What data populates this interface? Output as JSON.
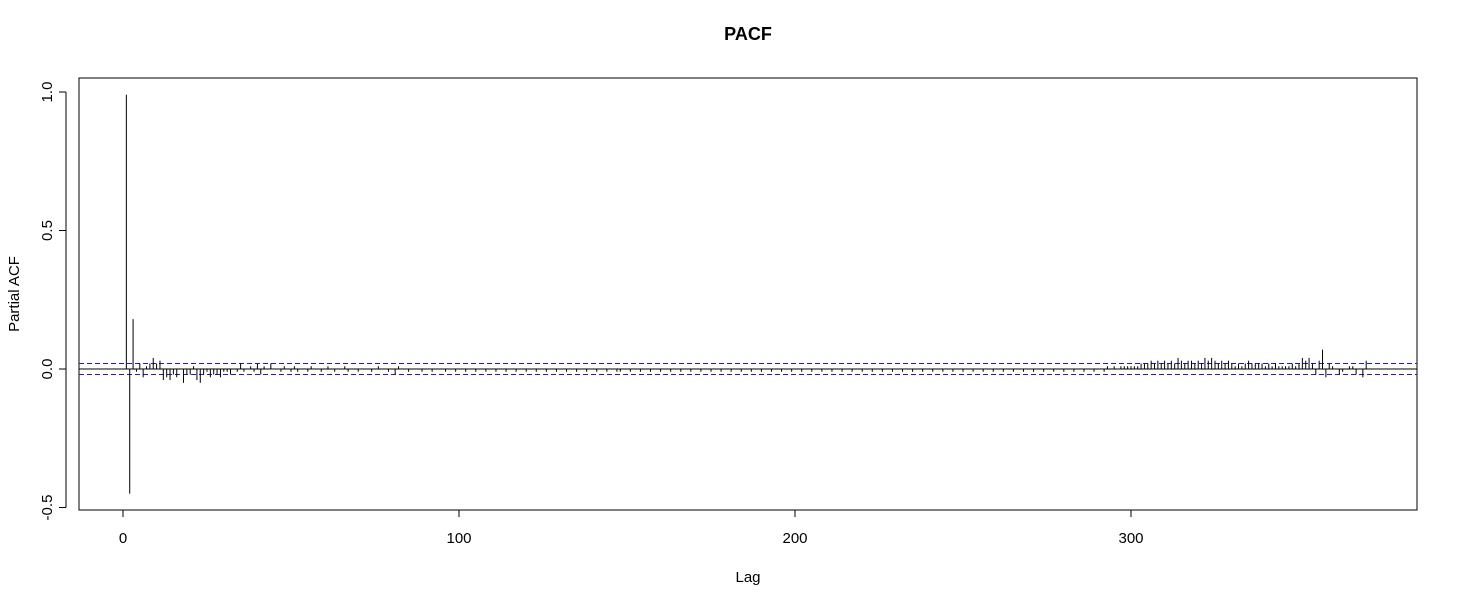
{
  "chart_data": {
    "type": "bar",
    "title": "PACF",
    "xlabel": "Lag",
    "ylabel": "Partial ACF",
    "xlim": [
      -14,
      385
    ],
    "ylim": [
      -0.5,
      1.0
    ],
    "x_ticks": [
      0,
      100,
      200,
      300
    ],
    "x_tick_labels": [
      "0",
      "100",
      "200",
      "300"
    ],
    "y_ticks": [
      -0.5,
      0.0,
      0.5,
      1.0
    ],
    "y_tick_labels": [
      "-0.5",
      "0.0",
      "0.5",
      "1.0"
    ],
    "grid": false,
    "confidence_limit": 0.02,
    "colors": {
      "bars": "#000000",
      "confidence_lines": "#1f1fbf",
      "axes": "#000000"
    },
    "series": [
      {
        "lags_start": 1,
        "values": [
          0.99,
          -0.45,
          0.18,
          -0.01,
          0.02,
          -0.03,
          0.01,
          0.02,
          0.04,
          0.02,
          0.03,
          -0.04,
          -0.03,
          -0.04,
          -0.02,
          -0.03,
          0.0,
          -0.05,
          -0.02,
          -0.02,
          0.01,
          -0.04,
          -0.05,
          -0.02,
          -0.01,
          -0.03,
          -0.02,
          -0.02,
          -0.03,
          -0.01,
          -0.01,
          -0.02,
          0.0,
          -0.01,
          0.02,
          -0.01,
          0.0,
          0.01,
          -0.01,
          0.02,
          -0.02,
          0.01,
          0.0,
          0.02,
          0.0,
          0.0,
          -0.01,
          0.01,
          0.0,
          -0.01,
          0.01,
          -0.01,
          0.0,
          0.0,
          -0.01,
          0.01,
          0.0,
          0.0,
          -0.01,
          0.0,
          0.01,
          0.0,
          -0.01,
          0.0,
          0.0,
          0.01,
          -0.01,
          0.0,
          0.0,
          -0.01,
          0.0,
          0.0,
          0.0,
          -0.01,
          0.0,
          0.01,
          0.0,
          0.0,
          -0.01,
          0.0,
          -0.02,
          0.01,
          0.0,
          0.0,
          -0.01,
          0.0,
          0.0,
          0.0,
          -0.01,
          0.0,
          0.0,
          -0.01,
          0.0,
          0.0,
          0.0,
          -0.01,
          0.0,
          0.0,
          -0.01,
          0.0,
          0.0,
          -0.01,
          0.0,
          0.0,
          -0.01,
          0.0,
          0.0,
          -0.01,
          0.0,
          0.0,
          -0.01,
          0.0,
          0.0,
          -0.01,
          0.0,
          0.0,
          -0.01,
          0.0,
          0.0,
          -0.01,
          0.0,
          0.0,
          -0.01,
          0.0,
          0.0,
          -0.01,
          0.0,
          0.0,
          -0.01,
          0.0,
          0.0,
          -0.01,
          0.0,
          0.0,
          -0.01,
          0.0,
          0.0,
          -0.01,
          0.0,
          0.0,
          -0.01,
          0.0,
          0.0,
          -0.01,
          0.0,
          0.0,
          -0.01,
          -0.01,
          0.0,
          0.0,
          -0.01,
          0.0,
          0.0,
          -0.01,
          0.0,
          0.0,
          -0.01,
          0.0,
          0.0,
          -0.01,
          0.0,
          0.0,
          -0.01,
          0.0,
          0.0,
          -0.01,
          0.0,
          0.0,
          -0.01,
          0.0,
          0.0,
          -0.01,
          0.0,
          0.0,
          -0.01,
          0.0,
          0.0,
          -0.01,
          0.0,
          0.0,
          -0.01,
          0.0,
          0.0,
          -0.01,
          0.0,
          0.0,
          -0.01,
          0.0,
          0.0,
          -0.01,
          0.0,
          0.0,
          -0.01,
          0.0,
          0.0,
          -0.01,
          0.0,
          0.0,
          -0.01,
          0.0,
          0.0,
          -0.01,
          0.0,
          0.0,
          -0.01,
          0.0,
          0.0,
          -0.01,
          0.0,
          0.0,
          -0.01,
          0.0,
          0.0,
          -0.01,
          0.0,
          0.0,
          -0.01,
          0.0,
          0.0,
          -0.01,
          0.0,
          0.0,
          -0.01,
          0.0,
          0.0,
          -0.01,
          0.0,
          0.0,
          -0.01,
          0.0,
          0.0,
          -0.01,
          0.0,
          0.0,
          -0.01,
          0.0,
          0.0,
          -0.01,
          0.0,
          0.0,
          -0.01,
          0.0,
          0.0,
          -0.01,
          0.0,
          0.0,
          -0.01,
          0.0,
          0.0,
          -0.01,
          0.0,
          0.0,
          -0.01,
          0.0,
          0.0,
          -0.01,
          0.0,
          0.0,
          -0.01,
          0.0,
          0.0,
          -0.01,
          0.0,
          0.0,
          -0.01,
          0.0,
          0.0,
          -0.01,
          0.0,
          0.0,
          -0.01,
          0.0,
          0.0,
          -0.01,
          0.0,
          0.0,
          -0.01,
          0.0,
          0.0,
          -0.01,
          0.0,
          0.0,
          -0.01,
          0.0,
          0.0,
          -0.01,
          0.0,
          0.0,
          -0.01,
          0.0,
          0.0,
          -0.01,
          0.01,
          0.0,
          0.01,
          0.0,
          0.01,
          0.01,
          0.01,
          0.01,
          0.01,
          0.01,
          0.02,
          0.02,
          0.02,
          0.03,
          0.02,
          0.03,
          0.02,
          0.03,
          0.02,
          0.03,
          0.02,
          0.04,
          0.03,
          0.02,
          0.03,
          0.03,
          0.02,
          0.03,
          0.02,
          0.04,
          0.03,
          0.04,
          0.03,
          0.02,
          0.03,
          0.02,
          0.03,
          0.02,
          0.01,
          0.02,
          0.01,
          0.02,
          0.03,
          0.02,
          0.02,
          0.02,
          0.02,
          0.01,
          0.02,
          0.01,
          0.02,
          0.01,
          0.01,
          0.01,
          0.01,
          0.02,
          0.01,
          0.02,
          0.04,
          0.03,
          0.04,
          0.02,
          -0.02,
          0.03,
          0.07,
          -0.03,
          0.02,
          0.01,
          0.0,
          -0.02,
          -0.01,
          0.0,
          0.01,
          0.01,
          -0.02,
          0.0,
          -0.03,
          0.03
        ]
      }
    ]
  }
}
